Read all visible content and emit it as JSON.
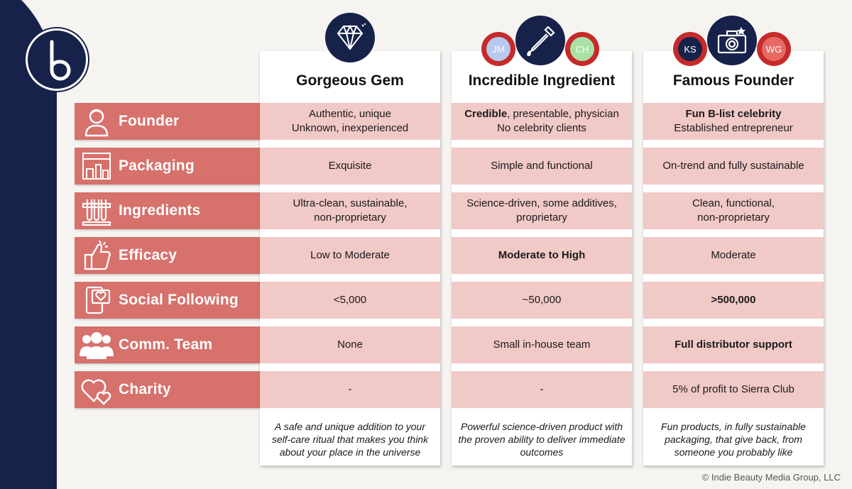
{
  "brand": {
    "logo_letter": "b"
  },
  "rows": [
    {
      "label": "Founder",
      "icon": "person-icon"
    },
    {
      "label": "Packaging",
      "icon": "packaging-icon"
    },
    {
      "label": "Ingredients",
      "icon": "test-tubes-icon"
    },
    {
      "label": "Efficacy",
      "icon": "thumbs-up-icon"
    },
    {
      "label": "Social Following",
      "icon": "social-heart-icon"
    },
    {
      "label": "Comm. Team",
      "icon": "team-icon"
    },
    {
      "label": "Charity",
      "icon": "hearts-icon"
    }
  ],
  "columns": [
    {
      "title": "Gorgeous Gem",
      "icon": "diamond-icon",
      "chips": [],
      "founder": {
        "bold": "",
        "line1": "Authentic, unique",
        "line2": "Unknown, inexperienced"
      },
      "packaging": "Exquisite",
      "ingredients": {
        "line1": "Ultra-clean, sustainable,",
        "line2": "non-proprietary"
      },
      "efficacy": "Low to Moderate",
      "social": "<5,000",
      "team": "None",
      "charity": "-",
      "summary": "A safe and unique addition to your self-care ritual that makes you think about your place in the universe"
    },
    {
      "title": "Incredible Ingredient",
      "icon": "dropper-icon",
      "chips": [
        "JM",
        "CH"
      ],
      "founder": {
        "bold": "Credible",
        "line1": ", presentable, physician",
        "line2": "No celebrity clients"
      },
      "packaging": "Simple and functional",
      "ingredients": {
        "line1": "Science-driven, some additives,",
        "line2": "proprietary"
      },
      "efficacy": "Moderate to High",
      "social": "~50,000",
      "team": "Small in-house team",
      "charity": "-",
      "summary": "Powerful science-driven product with the proven ability to deliver immediate outcomes"
    },
    {
      "title": "Famous Founder",
      "icon": "camera-icon",
      "chips": [
        "KS",
        "WG"
      ],
      "founder": {
        "bold": "Fun B-list celebrity",
        "line1": "",
        "line2": "Established entrepreneur"
      },
      "packaging": "On-trend and fully sustainable",
      "ingredients": {
        "line1": "Clean, functional,",
        "line2": "non-proprietary"
      },
      "efficacy": "Moderate",
      "social": ">500,000",
      "team": "Full distributor support",
      "charity": "5% of profit to Sierra Club",
      "summary": "Fun products, in fully sustainable packaging, that give back, from someone you probably like"
    }
  ],
  "copyright": "© Indie Beauty Media Group, LLC",
  "colors": {
    "navy": "#17224a",
    "label_red": "#d6716c",
    "cell_pink": "#f1c9c7",
    "chip_red": "#c62a2a"
  }
}
